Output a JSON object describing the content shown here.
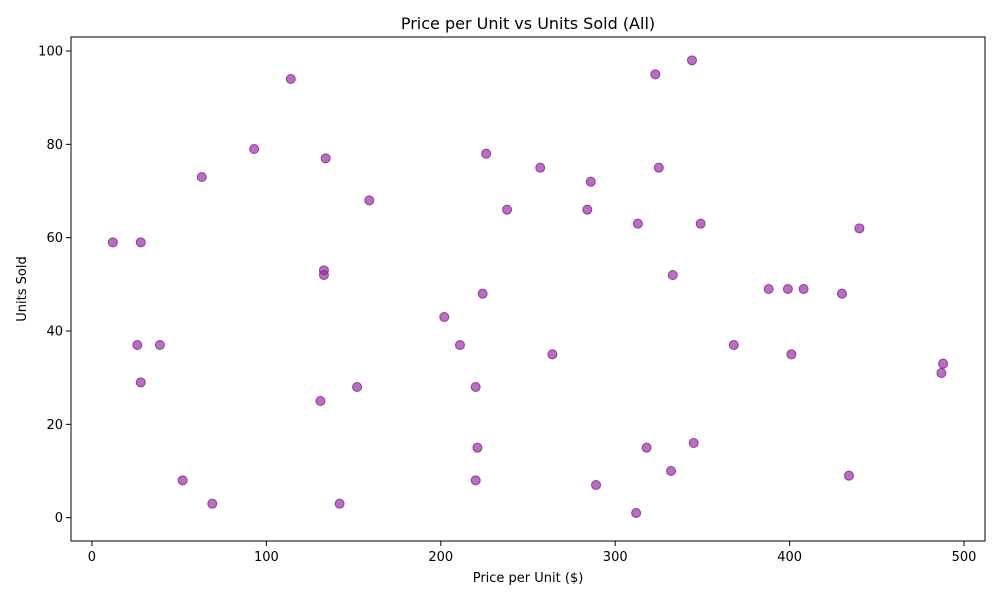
{
  "chart_data": {
    "type": "scatter",
    "title": "Price per Unit vs Units Sold (All)",
    "xlabel": "Price per Unit ($)",
    "ylabel": "Units Sold",
    "xlim": [
      -12,
      512
    ],
    "ylim": [
      -5,
      103
    ],
    "xticks": [
      0,
      100,
      200,
      300,
      400,
      500
    ],
    "yticks": [
      0,
      20,
      40,
      60,
      80,
      100
    ],
    "grid": false,
    "marker_color": "#9b30a8",
    "marker_edge": "#7a1f87",
    "series": [
      {
        "points": [
          {
            "x": 12,
            "y": 59
          },
          {
            "x": 26,
            "y": 37
          },
          {
            "x": 28,
            "y": 59
          },
          {
            "x": 28,
            "y": 29
          },
          {
            "x": 39,
            "y": 37
          },
          {
            "x": 52,
            "y": 8
          },
          {
            "x": 63,
            "y": 73
          },
          {
            "x": 69,
            "y": 3
          },
          {
            "x": 93,
            "y": 79
          },
          {
            "x": 114,
            "y": 94
          },
          {
            "x": 131,
            "y": 25
          },
          {
            "x": 133,
            "y": 53
          },
          {
            "x": 133,
            "y": 52
          },
          {
            "x": 134,
            "y": 77
          },
          {
            "x": 142,
            "y": 3
          },
          {
            "x": 152,
            "y": 28
          },
          {
            "x": 159,
            "y": 68
          },
          {
            "x": 202,
            "y": 43
          },
          {
            "x": 211,
            "y": 37
          },
          {
            "x": 220,
            "y": 28
          },
          {
            "x": 220,
            "y": 8
          },
          {
            "x": 221,
            "y": 15
          },
          {
            "x": 224,
            "y": 48
          },
          {
            "x": 226,
            "y": 78
          },
          {
            "x": 238,
            "y": 66
          },
          {
            "x": 257,
            "y": 75
          },
          {
            "x": 264,
            "y": 35
          },
          {
            "x": 284,
            "y": 66
          },
          {
            "x": 286,
            "y": 72
          },
          {
            "x": 289,
            "y": 7
          },
          {
            "x": 312,
            "y": 1
          },
          {
            "x": 313,
            "y": 63
          },
          {
            "x": 318,
            "y": 15
          },
          {
            "x": 323,
            "y": 95
          },
          {
            "x": 325,
            "y": 75
          },
          {
            "x": 332,
            "y": 10
          },
          {
            "x": 333,
            "y": 52
          },
          {
            "x": 344,
            "y": 98
          },
          {
            "x": 345,
            "y": 16
          },
          {
            "x": 349,
            "y": 63
          },
          {
            "x": 368,
            "y": 37
          },
          {
            "x": 388,
            "y": 49
          },
          {
            "x": 399,
            "y": 49
          },
          {
            "x": 401,
            "y": 35
          },
          {
            "x": 408,
            "y": 49
          },
          {
            "x": 430,
            "y": 48
          },
          {
            "x": 434,
            "y": 9
          },
          {
            "x": 440,
            "y": 62
          },
          {
            "x": 487,
            "y": 31
          },
          {
            "x": 488,
            "y": 33
          }
        ]
      }
    ]
  }
}
